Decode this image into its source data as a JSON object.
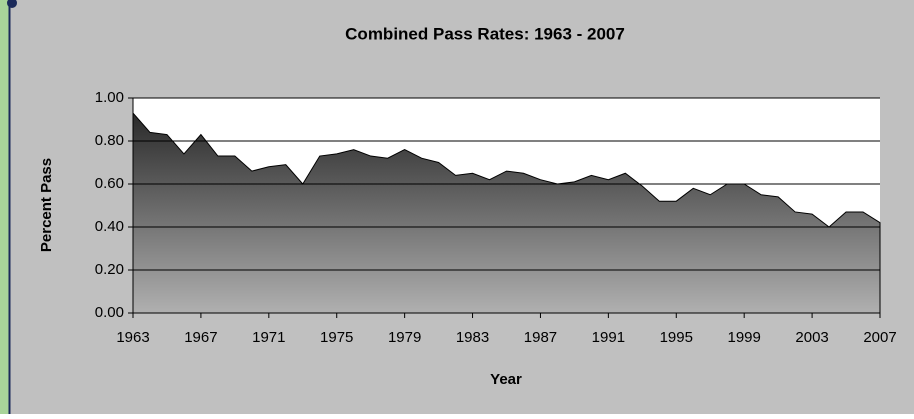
{
  "chart_data": {
    "type": "area",
    "title": "Combined Pass Rates: 1963 - 2007",
    "xlabel": "Year",
    "ylabel": "Percent Pass",
    "x": [
      1963,
      1964,
      1965,
      1966,
      1967,
      1968,
      1969,
      1970,
      1971,
      1972,
      1973,
      1974,
      1975,
      1976,
      1977,
      1978,
      1979,
      1980,
      1981,
      1982,
      1983,
      1984,
      1985,
      1986,
      1987,
      1988,
      1989,
      1990,
      1991,
      1992,
      1993,
      1994,
      1995,
      1996,
      1997,
      1998,
      1999,
      2000,
      2001,
      2002,
      2003,
      2004,
      2005,
      2006,
      2007
    ],
    "values": [
      0.93,
      0.84,
      0.83,
      0.74,
      0.83,
      0.73,
      0.73,
      0.66,
      0.68,
      0.69,
      0.6,
      0.73,
      0.74,
      0.76,
      0.73,
      0.72,
      0.76,
      0.72,
      0.7,
      0.64,
      0.65,
      0.62,
      0.66,
      0.65,
      0.62,
      0.6,
      0.61,
      0.64,
      0.62,
      0.65,
      0.59,
      0.52,
      0.52,
      0.58,
      0.55,
      0.6,
      0.6,
      0.55,
      0.54,
      0.47,
      0.46,
      0.4,
      0.47,
      0.47,
      0.42
    ],
    "xlim": [
      1963,
      2007
    ],
    "xticks": [
      1963,
      1967,
      1971,
      1975,
      1979,
      1983,
      1987,
      1991,
      1995,
      1999,
      2003,
      2007
    ],
    "ylim": [
      0,
      1
    ],
    "yticks": [
      {
        "value": 0,
        "label": "0.00"
      },
      {
        "value": 0.2,
        "label": "0.20"
      },
      {
        "value": 0.4,
        "label": "0.40"
      },
      {
        "value": 0.6,
        "label": "0.60"
      },
      {
        "value": 0.8,
        "label": "0.80"
      },
      {
        "value": 1,
        "label": "1.00"
      }
    ],
    "grid": true
  }
}
